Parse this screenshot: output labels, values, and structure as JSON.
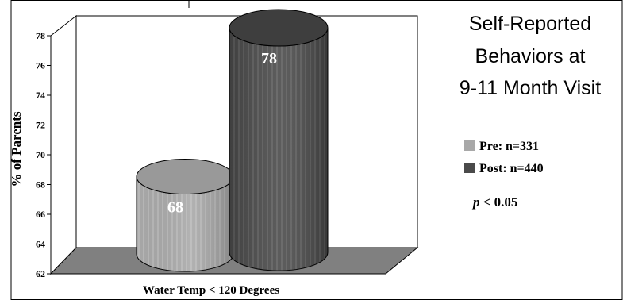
{
  "chart_data": {
    "type": "bar",
    "title": "Self-Reported Behaviors at 9-11 Month Visit",
    "title_lines": [
      "Self-Reported",
      "Behaviors at",
      "9-11 Month Visit"
    ],
    "xlabel": "Water Temp < 120 Degrees",
    "ylabel": "% of Parents",
    "ylim": [
      62,
      78
    ],
    "yticks": [
      62,
      64,
      66,
      68,
      70,
      72,
      74,
      76,
      78
    ],
    "categories": [
      "Water Temp < 120 Degrees"
    ],
    "series": [
      {
        "name": "Pre: n=331",
        "values": [
          68
        ],
        "label": "68",
        "color": "#a8a8a8"
      },
      {
        "name": "Post: n=440",
        "values": [
          78
        ],
        "label": "78",
        "color": "#4a4a4a"
      }
    ],
    "legend_position": "right",
    "annotation": {
      "italic": "p",
      "rest": " < 0.05"
    },
    "floor_color": "#808080",
    "grid": false
  }
}
